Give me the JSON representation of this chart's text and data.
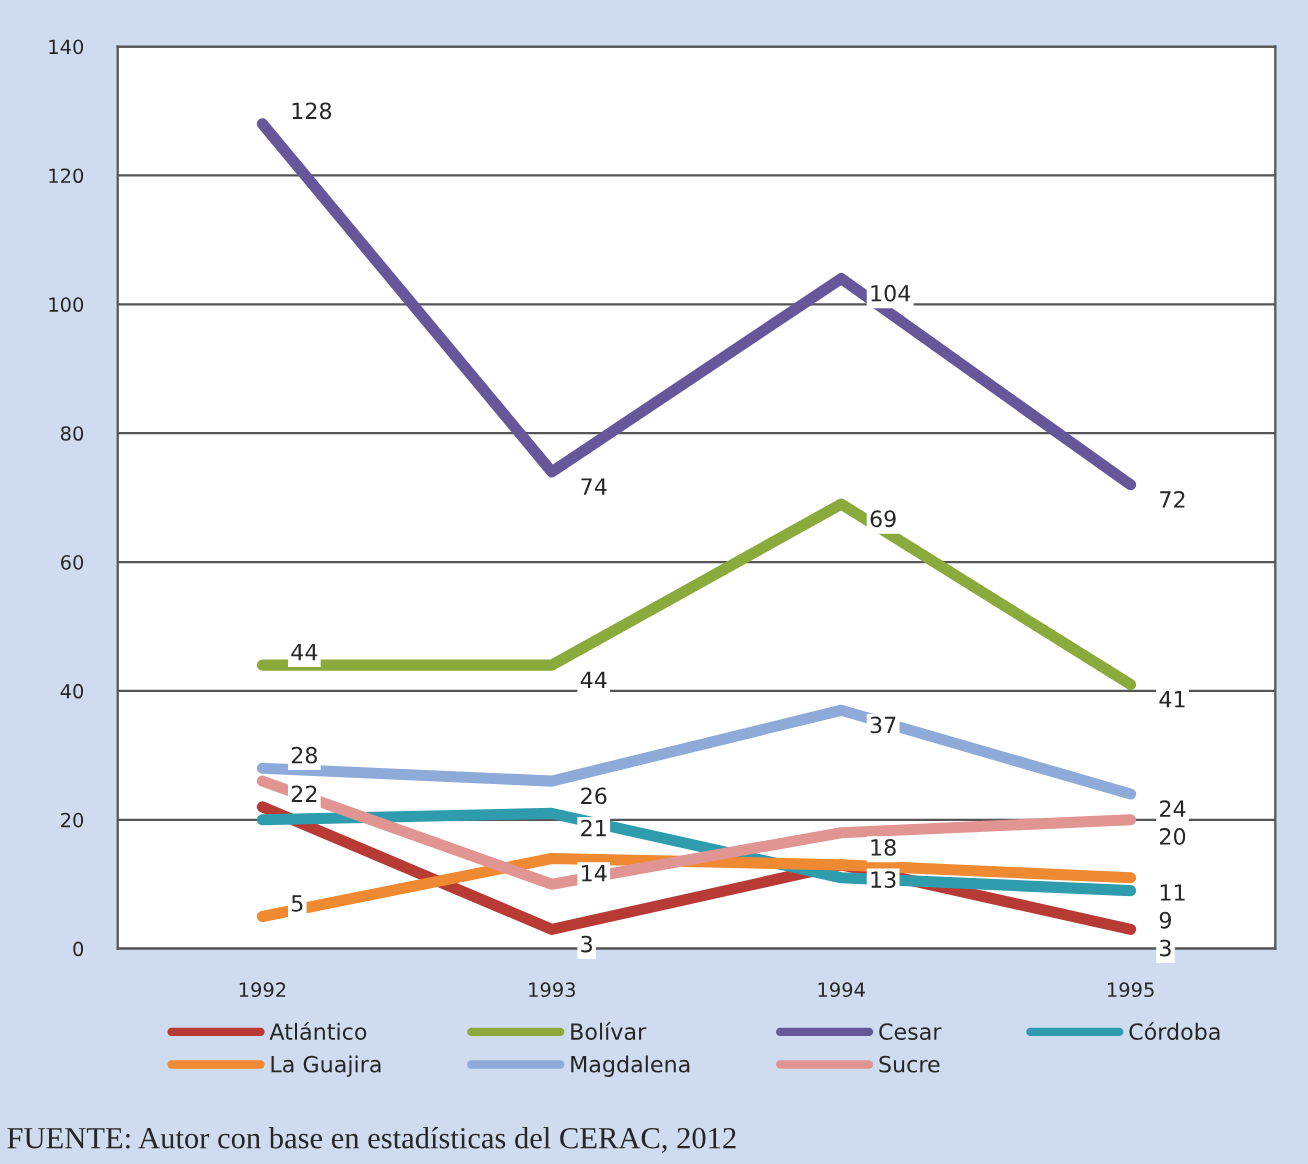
{
  "chart_data": {
    "type": "line",
    "categories": [
      "1992",
      "1993",
      "1994",
      "1995"
    ],
    "series": [
      {
        "name": "Atlántico",
        "color": "#b83a35",
        "values": [
          22,
          3,
          13,
          3
        ],
        "value_labels": [
          "22",
          "3",
          "13",
          "3"
        ]
      },
      {
        "name": "Bolívar",
        "color": "#8aab3c",
        "values": [
          44,
          44,
          69,
          41
        ],
        "value_labels": [
          "44",
          "44",
          "69",
          "41"
        ]
      },
      {
        "name": "Cesar",
        "color": "#65579a",
        "values": [
          128,
          74,
          104,
          72
        ],
        "value_labels": [
          "128",
          "74",
          "104",
          "72"
        ]
      },
      {
        "name": "Córdoba",
        "color": "#2f9cae",
        "values": [
          20,
          21,
          11,
          9
        ],
        "value_labels": [
          null,
          "21",
          null,
          "9"
        ]
      },
      {
        "name": "La Guajira",
        "color": "#ef8a33",
        "values": [
          5,
          14,
          13,
          11
        ],
        "value_labels": [
          "5",
          "14",
          null,
          "11"
        ]
      },
      {
        "name": "Magdalena",
        "color": "#8eaad8",
        "values": [
          28,
          26,
          37,
          24
        ],
        "value_labels": [
          "28",
          "26",
          "37",
          "24"
        ]
      },
      {
        "name": "Sucre",
        "color": "#e09593",
        "values": [
          26,
          10,
          18,
          20
        ],
        "value_labels": [
          null,
          null,
          "18",
          "20"
        ]
      }
    ],
    "ylim": [
      0,
      140
    ],
    "yticks": [
      0,
      20,
      40,
      60,
      80,
      100,
      120,
      140
    ],
    "grid": "y",
    "legend": "bottom",
    "marker": "none",
    "line_style": "solid",
    "annotations": [
      "FUENTE: Autor con base en estadísticas del CERAC, 2012"
    ]
  }
}
